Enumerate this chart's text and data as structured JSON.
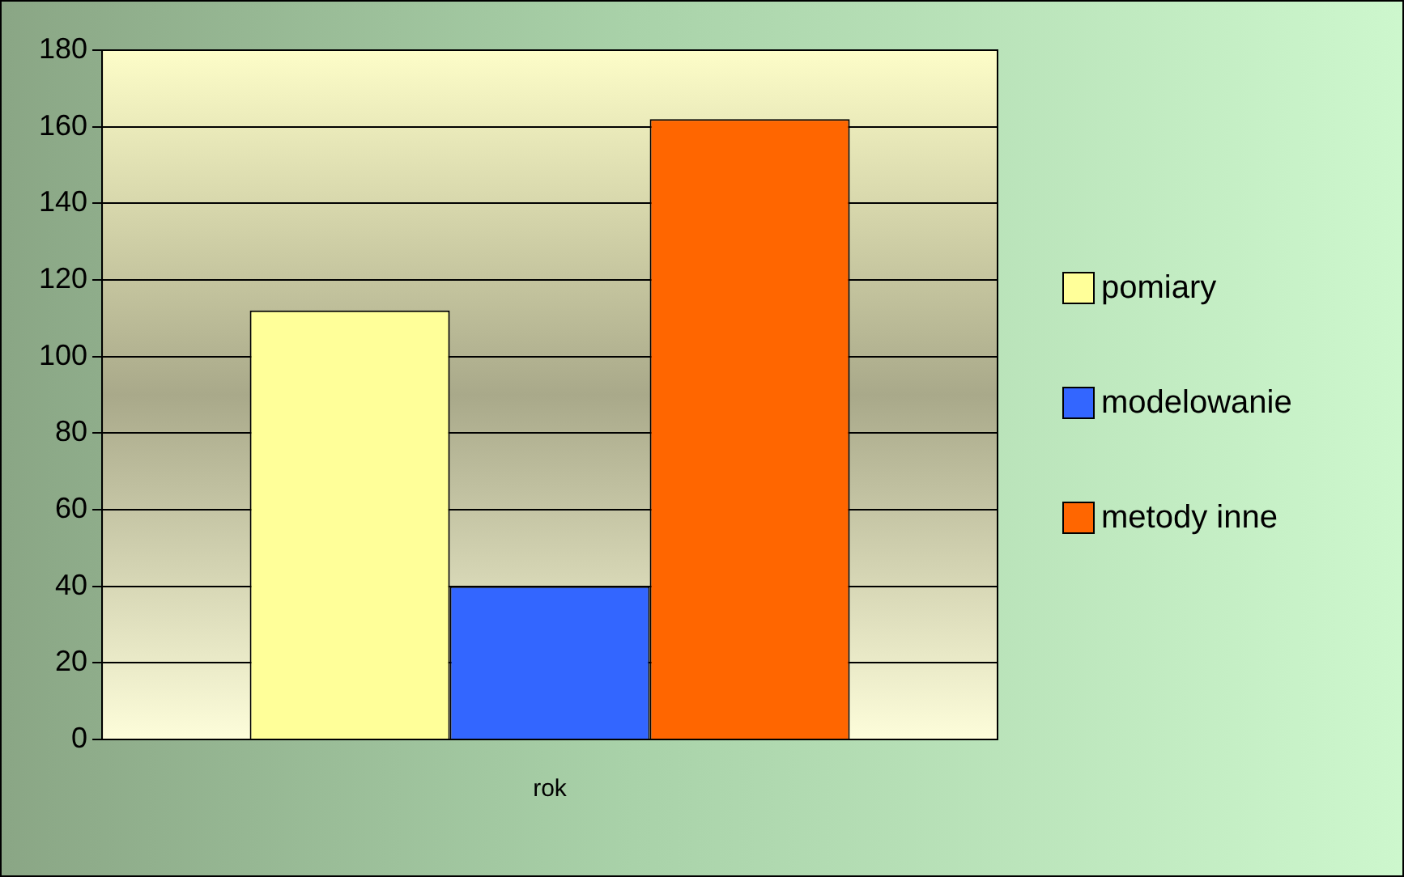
{
  "chart_data": {
    "type": "bar",
    "categories": [
      "rok"
    ],
    "series": [
      {
        "name": "pomiary",
        "color": "#ffff99",
        "values": [
          112
        ]
      },
      {
        "name": "modelowanie",
        "color": "#3366ff",
        "values": [
          40
        ]
      },
      {
        "name": "metody inne",
        "color": "#ff6600",
        "values": [
          162
        ]
      }
    ],
    "ylim": [
      0,
      180
    ],
    "yticks": [
      0,
      20,
      40,
      60,
      80,
      100,
      120,
      140,
      160,
      180
    ],
    "grid": "y",
    "legend": "right"
  }
}
